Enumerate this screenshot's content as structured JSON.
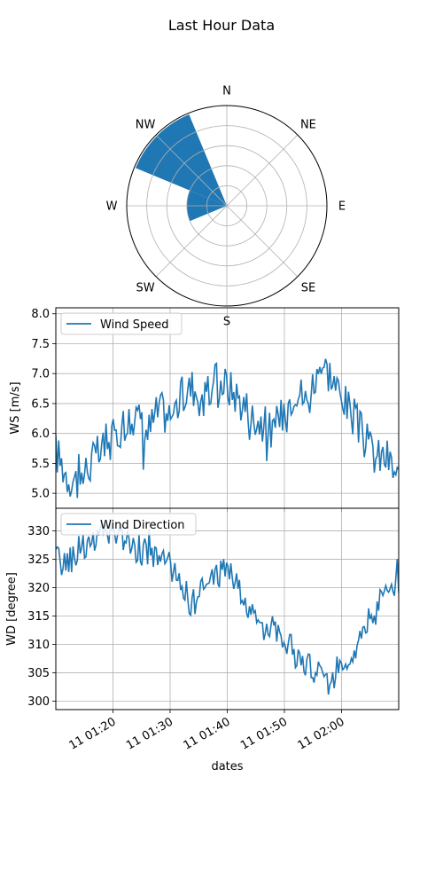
{
  "figure": {
    "title": "Last Hour Data"
  },
  "chart_data": [
    {
      "type": "polar-bar",
      "title": "",
      "direction_labels": [
        "N",
        "NE",
        "E",
        "SE",
        "S",
        "SW",
        "W",
        "NW"
      ],
      "radial_ticks": [
        1,
        2,
        3,
        4,
        5
      ],
      "r_max": 5,
      "grid": true,
      "bars": [
        {
          "direction": "NW",
          "start_deg": 292.5,
          "end_deg": 337.5,
          "radius": 4.93,
          "color": "#1f77b4"
        },
        {
          "direction": "W/NW",
          "start_deg": 247.5,
          "end_deg": 292.5,
          "radius": 2.0,
          "color": "#1f77b4"
        }
      ]
    },
    {
      "type": "line",
      "title": "",
      "ylabel": "WS [m/s]",
      "xlabel": "",
      "ylim": [
        4.75,
        8.1
      ],
      "yticks": [
        "5.0",
        "5.5",
        "6.0",
        "6.5",
        "7.0",
        "7.5",
        "8.0"
      ],
      "grid": true,
      "legend_position": "upper-left",
      "series": [
        {
          "name": "Wind Speed",
          "color": "#1f77b4",
          "x_start": "01:10",
          "x_end": "02:10",
          "anchors": [
            [
              "01:10",
              5.7
            ],
            [
              "01:12",
              5.3
            ],
            [
              "01:14",
              5.2
            ],
            [
              "01:16",
              5.5
            ],
            [
              "01:18",
              5.7
            ],
            [
              "01:20",
              5.9
            ],
            [
              "01:22",
              6.2
            ],
            [
              "01:24",
              6.3
            ],
            [
              "01:26",
              6.0
            ],
            [
              "01:28",
              6.4
            ],
            [
              "01:30",
              6.3
            ],
            [
              "01:32",
              6.6
            ],
            [
              "01:34",
              6.8
            ],
            [
              "01:36",
              6.5
            ],
            [
              "01:38",
              6.9
            ],
            [
              "01:40",
              6.8
            ],
            [
              "01:42",
              6.6
            ],
            [
              "01:44",
              6.3
            ],
            [
              "01:46",
              6.2
            ],
            [
              "01:48",
              6.0
            ],
            [
              "01:50",
              6.4
            ],
            [
              "01:52",
              6.8
            ],
            [
              "01:54",
              6.5
            ],
            [
              "01:56",
              7.2
            ],
            [
              "01:58",
              7.0
            ],
            [
              "02:00",
              6.6
            ],
            [
              "02:02",
              6.3
            ],
            [
              "02:04",
              5.9
            ],
            [
              "02:06",
              5.6
            ],
            [
              "02:08",
              5.6
            ],
            [
              "02:10",
              5.2
            ]
          ]
        }
      ]
    },
    {
      "type": "line",
      "title": "",
      "ylabel": "WD [degree]",
      "xlabel": "dates",
      "ylim": [
        298.5,
        334
      ],
      "yticks": [
        "300",
        "305",
        "310",
        "315",
        "320",
        "325",
        "330"
      ],
      "xticks": [
        "11 01:20",
        "11 01:30",
        "11 01:40",
        "11 01:50",
        "11 02:00"
      ],
      "grid": true,
      "legend_position": "upper-left",
      "series": [
        {
          "name": "Wind Direction",
          "color": "#1f77b4",
          "x_start": "01:10",
          "x_end": "02:10",
          "anchors": [
            [
              "01:10",
              325
            ],
            [
              "01:12",
              324
            ],
            [
              "01:14",
              327
            ],
            [
              "01:16",
              328
            ],
            [
              "01:18",
              329
            ],
            [
              "01:20",
              330
            ],
            [
              "01:22",
              329
            ],
            [
              "01:24",
              327
            ],
            [
              "01:26",
              326
            ],
            [
              "01:28",
              325
            ],
            [
              "01:30",
              324
            ],
            [
              "01:32",
              320
            ],
            [
              "01:34",
              317
            ],
            [
              "01:36",
              320
            ],
            [
              "01:38",
              322
            ],
            [
              "01:40",
              324
            ],
            [
              "01:42",
              320
            ],
            [
              "01:44",
              315
            ],
            [
              "01:46",
              313
            ],
            [
              "01:48",
              314
            ],
            [
              "01:50",
              311
            ],
            [
              "01:52",
              308
            ],
            [
              "01:54",
              306
            ],
            [
              "01:56",
              305
            ],
            [
              "01:58",
              303
            ],
            [
              "02:00",
              307
            ],
            [
              "02:02",
              309
            ],
            [
              "02:04",
              313
            ],
            [
              "02:06",
              316
            ],
            [
              "02:08",
              320
            ],
            [
              "02:10",
              320
            ]
          ]
        }
      ]
    }
  ]
}
